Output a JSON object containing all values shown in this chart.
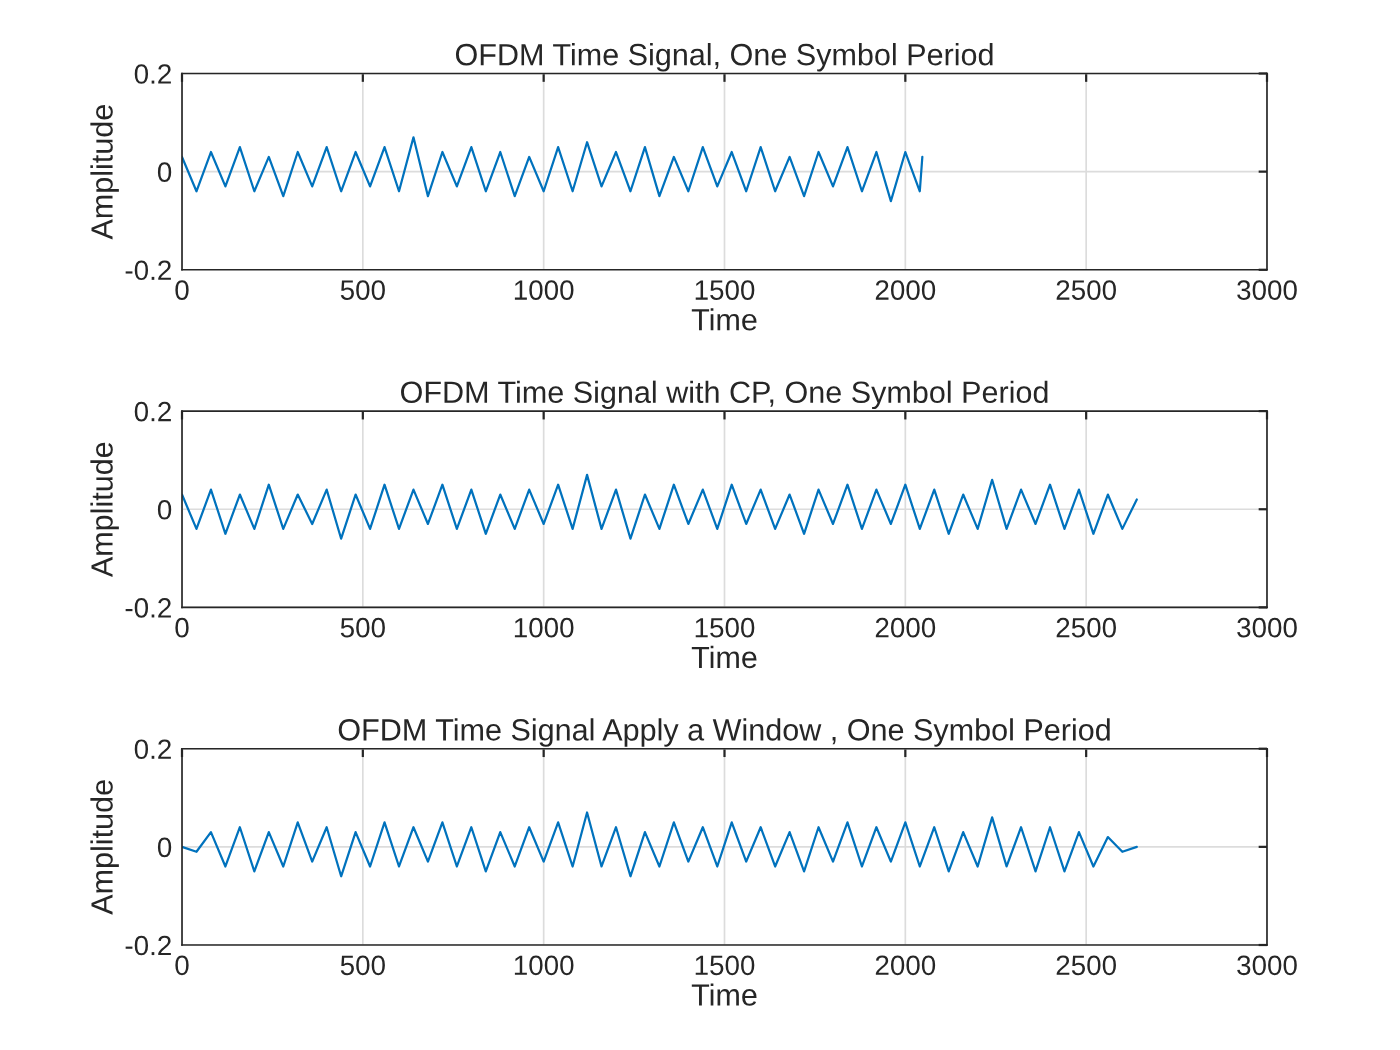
{
  "chart_data": [
    {
      "type": "line",
      "title": "OFDM Time Signal, One Symbol Period",
      "xlabel": "Time",
      "ylabel": "Amplitude",
      "xlim": [
        0,
        3000
      ],
      "xticks": [
        0,
        500,
        1000,
        1500,
        2000,
        2500,
        3000
      ],
      "ylim": [
        -0.2,
        0.2
      ],
      "yticks": [
        -0.2,
        0,
        0.2
      ],
      "grid": true,
      "legend": false,
      "series": [
        {
          "color": "#0072bd",
          "x": [
            0,
            40,
            80,
            120,
            160,
            200,
            240,
            280,
            320,
            360,
            400,
            440,
            480,
            520,
            560,
            600,
            640,
            680,
            720,
            760,
            800,
            840,
            880,
            920,
            960,
            1000,
            1040,
            1080,
            1120,
            1160,
            1200,
            1240,
            1280,
            1320,
            1360,
            1400,
            1440,
            1480,
            1520,
            1560,
            1600,
            1640,
            1680,
            1720,
            1760,
            1800,
            1840,
            1880,
            1920,
            1960,
            2000,
            2040,
            2047
          ],
          "values": [
            0.03,
            -0.04,
            0.04,
            -0.03,
            0.05,
            -0.04,
            0.03,
            -0.05,
            0.04,
            -0.03,
            0.05,
            -0.04,
            0.04,
            -0.03,
            0.05,
            -0.04,
            0.07,
            -0.05,
            0.04,
            -0.03,
            0.05,
            -0.04,
            0.04,
            -0.05,
            0.03,
            -0.04,
            0.05,
            -0.04,
            0.06,
            -0.03,
            0.04,
            -0.04,
            0.05,
            -0.05,
            0.03,
            -0.04,
            0.05,
            -0.03,
            0.04,
            -0.04,
            0.05,
            -0.04,
            0.03,
            -0.05,
            0.04,
            -0.03,
            0.05,
            -0.04,
            0.04,
            -0.06,
            0.04,
            -0.04,
            0.03
          ]
        }
      ]
    },
    {
      "type": "line",
      "title": "OFDM Time Signal with CP, One Symbol Period",
      "xlabel": "Time",
      "ylabel": "Amplitude",
      "xlim": [
        0,
        3000
      ],
      "xticks": [
        0,
        500,
        1000,
        1500,
        2000,
        2500,
        3000
      ],
      "ylim": [
        -0.2,
        0.2
      ],
      "yticks": [
        -0.2,
        0,
        0.2
      ],
      "grid": true,
      "legend": false,
      "series": [
        {
          "color": "#0072bd",
          "x": [
            0,
            40,
            80,
            120,
            160,
            200,
            240,
            280,
            320,
            360,
            400,
            440,
            480,
            520,
            560,
            600,
            640,
            680,
            720,
            760,
            800,
            840,
            880,
            920,
            960,
            1000,
            1040,
            1080,
            1120,
            1160,
            1200,
            1240,
            1280,
            1320,
            1360,
            1400,
            1440,
            1480,
            1520,
            1560,
            1600,
            1640,
            1680,
            1720,
            1760,
            1800,
            1840,
            1880,
            1920,
            1960,
            2000,
            2040,
            2080,
            2120,
            2160,
            2200,
            2240,
            2280,
            2320,
            2360,
            2400,
            2440,
            2480,
            2520,
            2560,
            2600,
            2640
          ],
          "values": [
            0.03,
            -0.04,
            0.04,
            -0.05,
            0.03,
            -0.04,
            0.05,
            -0.04,
            0.03,
            -0.03,
            0.04,
            -0.06,
            0.03,
            -0.04,
            0.05,
            -0.04,
            0.04,
            -0.03,
            0.05,
            -0.04,
            0.04,
            -0.05,
            0.03,
            -0.04,
            0.04,
            -0.03,
            0.05,
            -0.04,
            0.07,
            -0.04,
            0.04,
            -0.06,
            0.03,
            -0.04,
            0.05,
            -0.03,
            0.04,
            -0.04,
            0.05,
            -0.03,
            0.04,
            -0.04,
            0.03,
            -0.05,
            0.04,
            -0.03,
            0.05,
            -0.04,
            0.04,
            -0.03,
            0.05,
            -0.04,
            0.04,
            -0.05,
            0.03,
            -0.04,
            0.06,
            -0.04,
            0.04,
            -0.03,
            0.05,
            -0.04,
            0.04,
            -0.05,
            0.03,
            -0.04,
            0.02
          ]
        }
      ]
    },
    {
      "type": "line",
      "title": "OFDM Time Signal Apply a Window , One Symbol Period",
      "xlabel": "Time",
      "ylabel": "Amplitude",
      "xlim": [
        0,
        3000
      ],
      "xticks": [
        0,
        500,
        1000,
        1500,
        2000,
        2500,
        3000
      ],
      "ylim": [
        -0.2,
        0.2
      ],
      "yticks": [
        -0.2,
        0,
        0.2
      ],
      "grid": true,
      "legend": false,
      "series": [
        {
          "color": "#0072bd",
          "x": [
            0,
            40,
            80,
            120,
            160,
            200,
            240,
            280,
            320,
            360,
            400,
            440,
            480,
            520,
            560,
            600,
            640,
            680,
            720,
            760,
            800,
            840,
            880,
            920,
            960,
            1000,
            1040,
            1080,
            1120,
            1160,
            1200,
            1240,
            1280,
            1320,
            1360,
            1400,
            1440,
            1480,
            1520,
            1560,
            1600,
            1640,
            1680,
            1720,
            1760,
            1800,
            1840,
            1880,
            1920,
            1960,
            2000,
            2040,
            2080,
            2120,
            2160,
            2200,
            2240,
            2280,
            2320,
            2360,
            2400,
            2440,
            2480,
            2520,
            2560,
            2600,
            2640
          ],
          "values": [
            0.0,
            -0.01,
            0.03,
            -0.04,
            0.04,
            -0.05,
            0.03,
            -0.04,
            0.05,
            -0.03,
            0.04,
            -0.06,
            0.03,
            -0.04,
            0.05,
            -0.04,
            0.04,
            -0.03,
            0.05,
            -0.04,
            0.04,
            -0.05,
            0.03,
            -0.04,
            0.04,
            -0.03,
            0.05,
            -0.04,
            0.07,
            -0.04,
            0.04,
            -0.06,
            0.03,
            -0.04,
            0.05,
            -0.03,
            0.04,
            -0.04,
            0.05,
            -0.03,
            0.04,
            -0.04,
            0.03,
            -0.05,
            0.04,
            -0.03,
            0.05,
            -0.04,
            0.04,
            -0.03,
            0.05,
            -0.04,
            0.04,
            -0.05,
            0.03,
            -0.04,
            0.06,
            -0.04,
            0.04,
            -0.05,
            0.04,
            -0.05,
            0.03,
            -0.04,
            0.02,
            -0.01,
            0.0
          ]
        }
      ]
    }
  ]
}
